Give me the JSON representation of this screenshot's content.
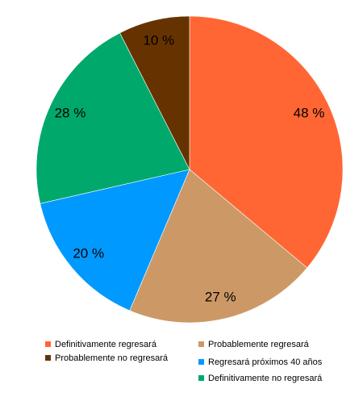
{
  "chart_data": {
    "type": "pie",
    "slices": [
      {
        "label": "Definitivamente regresará",
        "value": 48,
        "display": "48 %",
        "color": "#FF6633"
      },
      {
        "label": "Probablemente regresará",
        "value": 27,
        "display": "27 %",
        "color": "#CC9966"
      },
      {
        "label": "Regresará próximos 40 años",
        "value": 20,
        "display": "20 %",
        "color": "#0099FF"
      },
      {
        "label": "Definitivamente no regresará",
        "value": 28,
        "display": "28 %",
        "color": "#00A86B"
      },
      {
        "label": "Probablemente no regresará",
        "value": 10,
        "display": "10 %",
        "color": "#663300"
      }
    ],
    "start_angle_deg": 0,
    "direction": "clockwise",
    "legend_position": "bottom"
  }
}
